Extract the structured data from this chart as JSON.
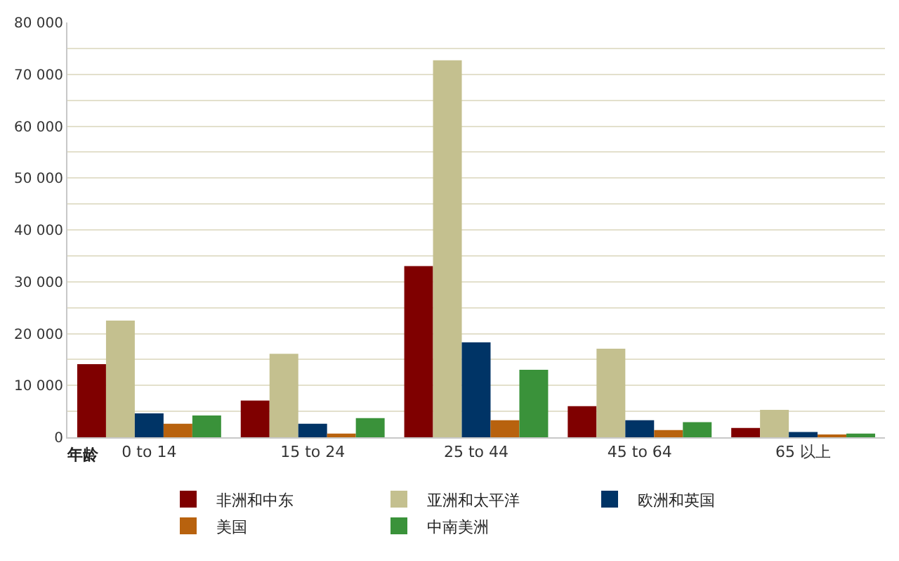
{
  "chart_data": {
    "type": "bar",
    "xlabel": "年龄",
    "categories": [
      "0 to 14",
      "15 to 24",
      "25 to 44",
      "45 to 64",
      "65 以上"
    ],
    "series": [
      {
        "name": "非洲和中东",
        "color": "#7f0000",
        "values": [
          14100,
          7100,
          33000,
          6000,
          1800
        ]
      },
      {
        "name": "亚洲和太平洋",
        "color": "#c4c08f",
        "values": [
          22500,
          16100,
          72700,
          17100,
          5300
        ]
      },
      {
        "name": "欧洲和英国",
        "color": "#003466",
        "values": [
          4600,
          2600,
          18300,
          3300,
          1000
        ]
      },
      {
        "name": "美国",
        "color": "#b8620e",
        "values": [
          2600,
          700,
          3300,
          1400,
          300
        ]
      },
      {
        "name": "中南美洲",
        "color": "#3a923a",
        "values": [
          4200,
          3700,
          13000,
          2900,
          700
        ]
      }
    ],
    "ylim": [
      0,
      80000
    ],
    "yticks": [
      {
        "value": 0,
        "label": "0"
      },
      {
        "value": 5000,
        "label": null
      },
      {
        "value": 10000,
        "label": "10 000"
      },
      {
        "value": 15000,
        "label": null
      },
      {
        "value": 20000,
        "label": "20 000"
      },
      {
        "value": 25000,
        "label": null
      },
      {
        "value": 30000,
        "label": "30 000"
      },
      {
        "value": 35000,
        "label": null
      },
      {
        "value": 40000,
        "label": "40 000"
      },
      {
        "value": 45000,
        "label": null
      },
      {
        "value": 50000,
        "label": "50 000"
      },
      {
        "value": 55000,
        "label": null
      },
      {
        "value": 60000,
        "label": "60 000"
      },
      {
        "value": 65000,
        "label": null
      },
      {
        "value": 70000,
        "label": "70 000"
      },
      {
        "value": 75000,
        "label": null
      },
      {
        "value": 80000,
        "label": "80 000"
      }
    ],
    "grid": "y",
    "legend": "bottom"
  }
}
